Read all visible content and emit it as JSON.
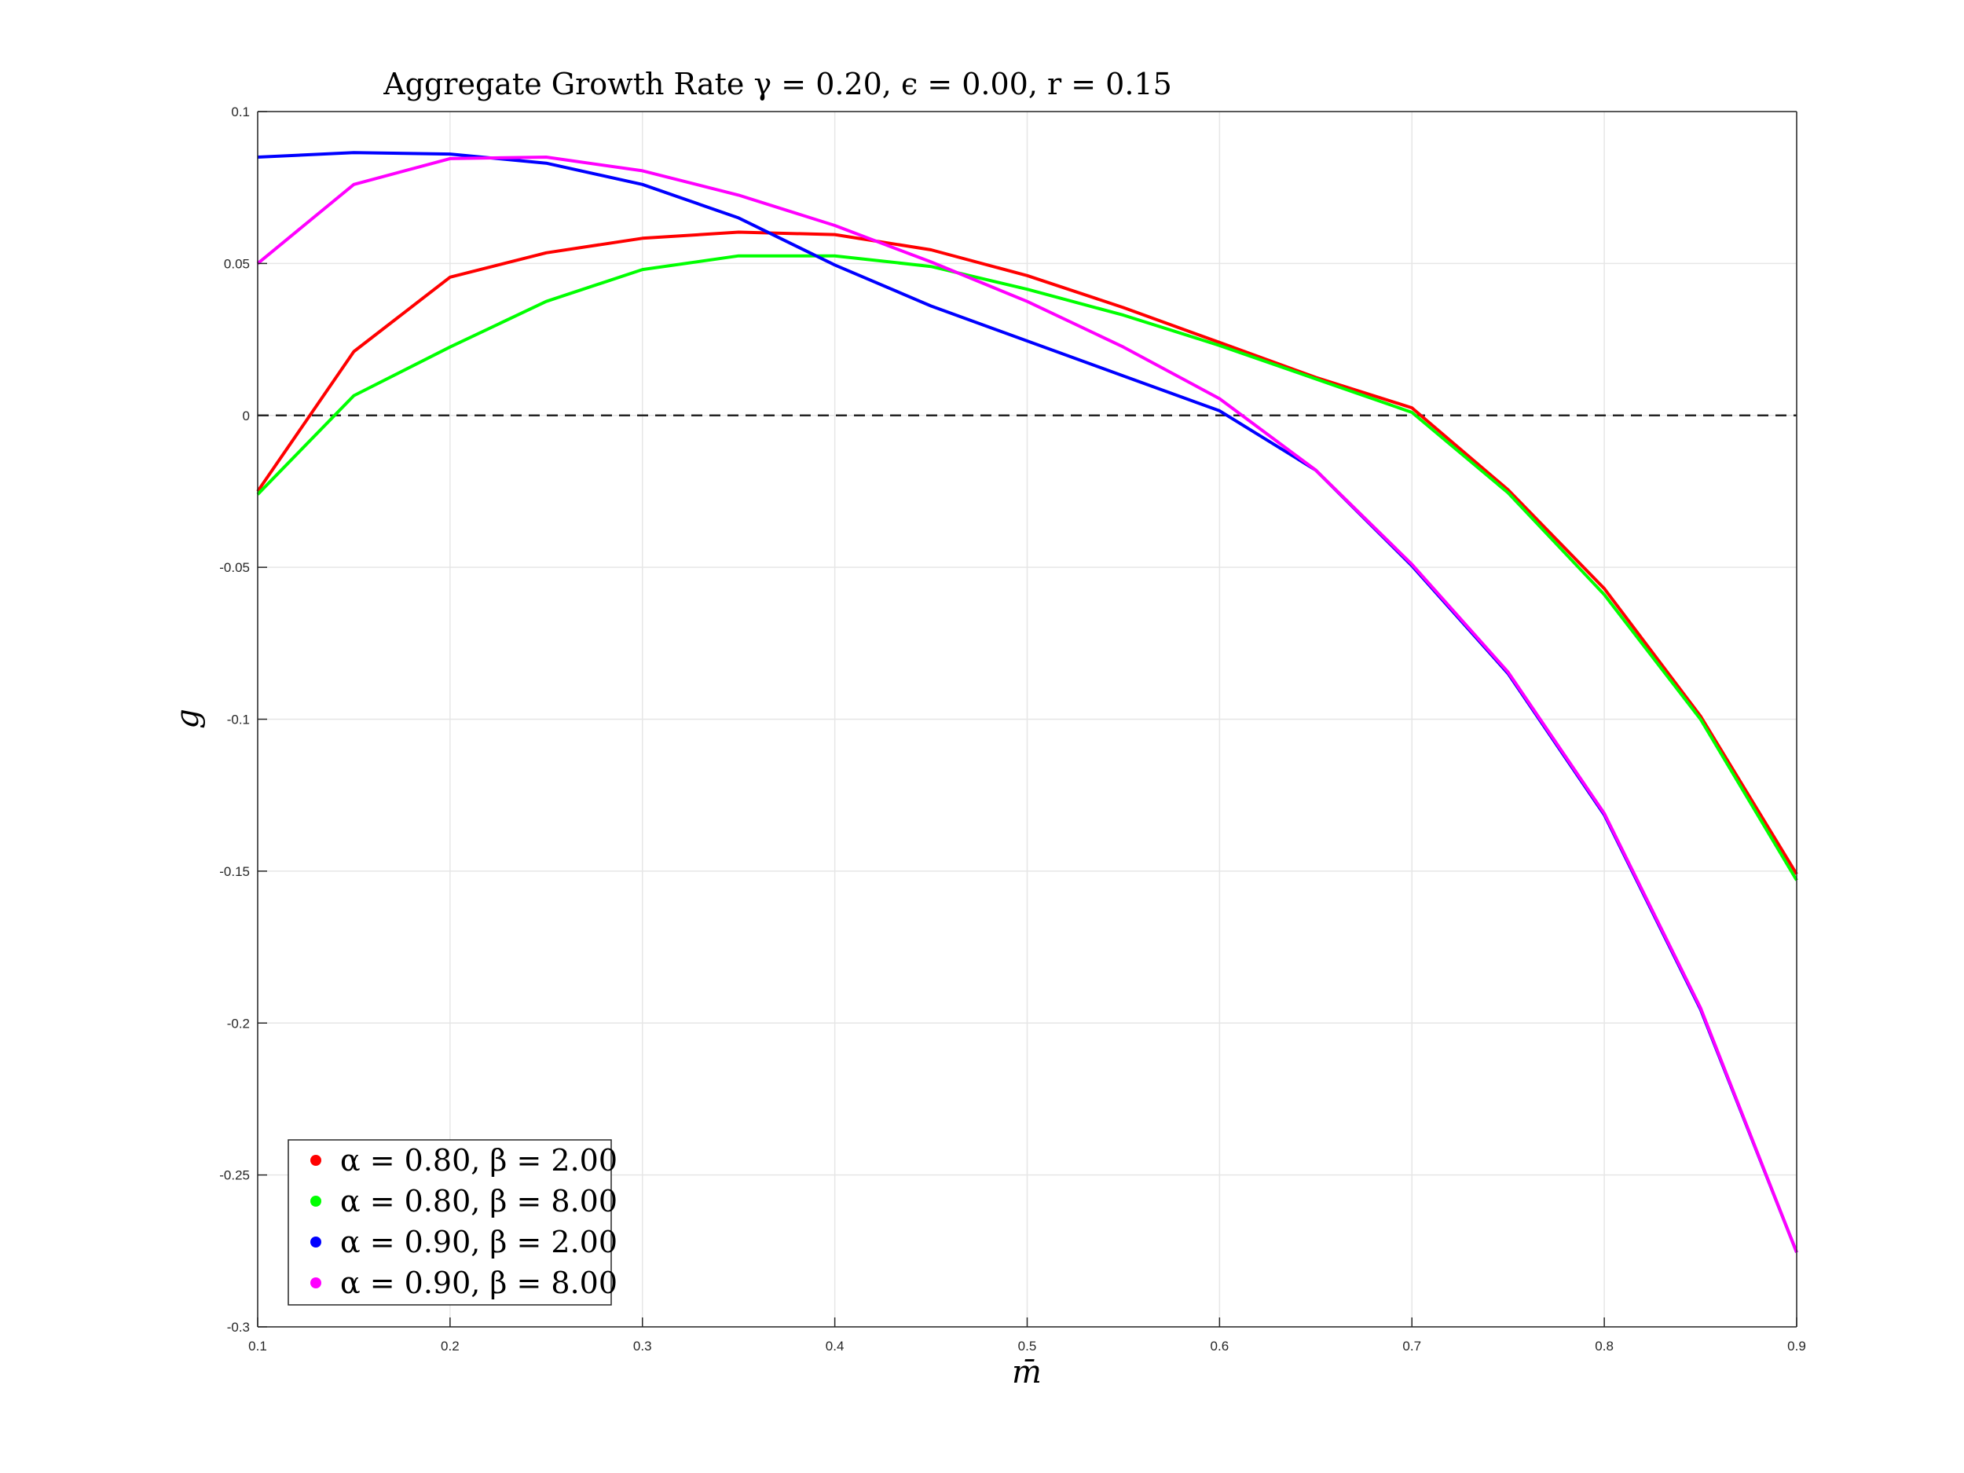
{
  "chart_data": {
    "type": "line",
    "title": "Aggregate Growth Rate γ = 0.20, ϵ = 0.00, r = 0.15",
    "xlabel": "m̄",
    "ylabel": "g",
    "xlim": [
      0.1,
      0.9
    ],
    "ylim": [
      -0.3,
      0.1
    ],
    "xticks": [
      0.1,
      0.2,
      0.3,
      0.4,
      0.5,
      0.6,
      0.7,
      0.8,
      0.9
    ],
    "xtick_labels": [
      "0.1",
      "0.2",
      "0.3",
      "0.4",
      "0.5",
      "0.6",
      "0.7",
      "0.8",
      "0.9"
    ],
    "yticks": [
      0.1,
      0.05,
      0,
      -0.05,
      -0.1,
      -0.15,
      -0.2,
      -0.25,
      -0.3
    ],
    "ytick_labels": [
      "0.1",
      "0.05",
      "0",
      "-0.05",
      "-0.1",
      "-0.15",
      "-0.2",
      "-0.25",
      "-0.3"
    ],
    "grid": true,
    "legend_position": "bottom-left",
    "reference_line": {
      "y": 0,
      "style": "dashed",
      "color": "#000000"
    },
    "x": [
      0.1,
      0.15,
      0.2,
      0.25,
      0.3,
      0.35,
      0.4,
      0.45,
      0.5,
      0.55,
      0.6,
      0.65,
      0.7,
      0.75,
      0.8,
      0.85,
      0.9
    ],
    "series": [
      {
        "name": "α = 0.80, β = 2.00",
        "color": "#ff0000",
        "values": [
          -0.025,
          0.021,
          0.0455,
          0.0535,
          0.0583,
          0.0603,
          0.0595,
          0.0545,
          0.046,
          0.0355,
          0.024,
          0.0125,
          0.0025,
          -0.0245,
          -0.057,
          -0.099,
          -0.151
        ]
      },
      {
        "name": "α = 0.80, β = 8.00",
        "color": "#00ff00",
        "values": [
          -0.026,
          0.0065,
          0.0225,
          0.0375,
          0.048,
          0.0525,
          0.0525,
          0.049,
          0.0415,
          0.033,
          0.023,
          0.012,
          0.001,
          -0.0255,
          -0.059,
          -0.1,
          -0.153
        ]
      },
      {
        "name": "α = 0.90, β = 2.00",
        "color": "#0000ff",
        "values": [
          0.085,
          0.0865,
          0.086,
          0.083,
          0.076,
          0.065,
          0.0495,
          0.036,
          0.0245,
          0.013,
          0.0015,
          -0.018,
          -0.0495,
          -0.085,
          -0.1315,
          -0.1955,
          -0.2755
        ]
      },
      {
        "name": "α = 0.90, β = 8.00",
        "color": "#ff00ff",
        "values": [
          0.05,
          0.076,
          0.0845,
          0.085,
          0.0805,
          0.0725,
          0.0625,
          0.0505,
          0.0375,
          0.0225,
          0.0055,
          -0.018,
          -0.049,
          -0.0845,
          -0.131,
          -0.195,
          -0.2755
        ]
      }
    ]
  }
}
